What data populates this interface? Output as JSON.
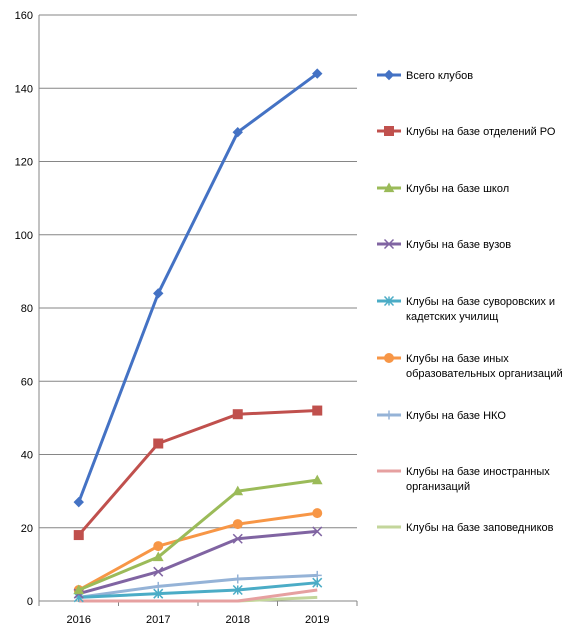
{
  "chart_data": {
    "type": "line",
    "title": "",
    "xlabel": "",
    "ylabel": "",
    "categories": [
      "2016",
      "2017",
      "2018",
      "2019"
    ],
    "ylim": [
      0,
      160
    ],
    "yticks": [
      0,
      20,
      40,
      60,
      80,
      100,
      120,
      140,
      160
    ],
    "grid": true,
    "legend_position": "right",
    "series": [
      {
        "name": "Всего клубов",
        "values": [
          27,
          84,
          128,
          144
        ],
        "color": "#4472C4",
        "marker": "diamond"
      },
      {
        "name": "Клубы на базе отделений РО",
        "values": [
          18,
          43,
          51,
          52
        ],
        "color": "#C0504D",
        "marker": "square"
      },
      {
        "name": "Клубы на базе школ",
        "values": [
          3,
          12,
          30,
          33
        ],
        "color": "#9BBB59",
        "marker": "triangle"
      },
      {
        "name": "Клубы на базе вузов",
        "values": [
          2,
          8,
          17,
          19
        ],
        "color": "#8064A2",
        "marker": "x"
      },
      {
        "name": "Клубы на базе суворовских и кадетских училищ",
        "values": [
          1,
          2,
          3,
          5
        ],
        "color": "#4BACC6",
        "marker": "star"
      },
      {
        "name": "Клубы на базе иных образовательных организаций",
        "values": [
          3,
          15,
          21,
          24
        ],
        "color": "#F79646",
        "marker": "circle"
      },
      {
        "name": "Клубы на базе НКО",
        "values": [
          1,
          4,
          6,
          7
        ],
        "color": "#95B3D7",
        "marker": "plus"
      },
      {
        "name": "Клубы на базе иностранных организаций",
        "values": [
          0,
          0,
          0,
          3
        ],
        "color": "#E6A0A0",
        "marker": "none"
      },
      {
        "name": "Клубы на базе заповедников",
        "values": [
          0,
          0,
          0,
          1
        ],
        "color": "#C3D69B",
        "marker": "none"
      }
    ]
  }
}
